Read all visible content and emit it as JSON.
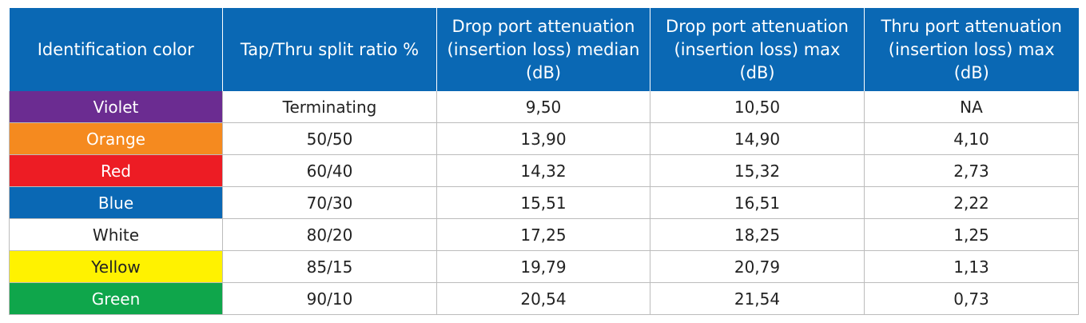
{
  "table": {
    "headers": [
      "Identification color",
      "Tap/Thru split ratio %",
      "Drop port attenuation (insertion loss) median (dB)",
      "Drop port attenuation (insertion loss) max (dB)",
      "Thru port attenuation (insertion loss) max (dB)"
    ],
    "header_color": "#0a68b4",
    "rows": [
      {
        "color": "Violet",
        "swatch": "#6b2c91",
        "text_color": "#ffffff",
        "ratio": "Terminating",
        "drop_median": "9,50",
        "drop_max": "10,50",
        "thru_max": "NA"
      },
      {
        "color": "Orange",
        "swatch": "#f58a1f",
        "text_color": "#ffffff",
        "ratio": "50/50",
        "drop_median": "13,90",
        "drop_max": "14,90",
        "thru_max": "4,10"
      },
      {
        "color": "Red",
        "swatch": "#ed1c24",
        "text_color": "#ffffff",
        "ratio": "60/40",
        "drop_median": "14,32",
        "drop_max": "15,32",
        "thru_max": "2,73"
      },
      {
        "color": "Blue",
        "swatch": "#0a68b4",
        "text_color": "#ffffff",
        "ratio": "70/30",
        "drop_median": "15,51",
        "drop_max": "16,51",
        "thru_max": "2,22"
      },
      {
        "color": "White",
        "swatch": "#ffffff",
        "text_color": "#222222",
        "ratio": "80/20",
        "drop_median": "17,25",
        "drop_max": "18,25",
        "thru_max": "1,25"
      },
      {
        "color": "Yellow",
        "swatch": "#fff200",
        "text_color": "#222222",
        "ratio": "85/15",
        "drop_median": "19,79",
        "drop_max": "20,79",
        "thru_max": "1,13"
      },
      {
        "color": "Green",
        "swatch": "#0fa64b",
        "text_color": "#ffffff",
        "ratio": "90/10",
        "drop_median": "20,54",
        "drop_max": "21,54",
        "thru_max": "0,73"
      }
    ]
  }
}
